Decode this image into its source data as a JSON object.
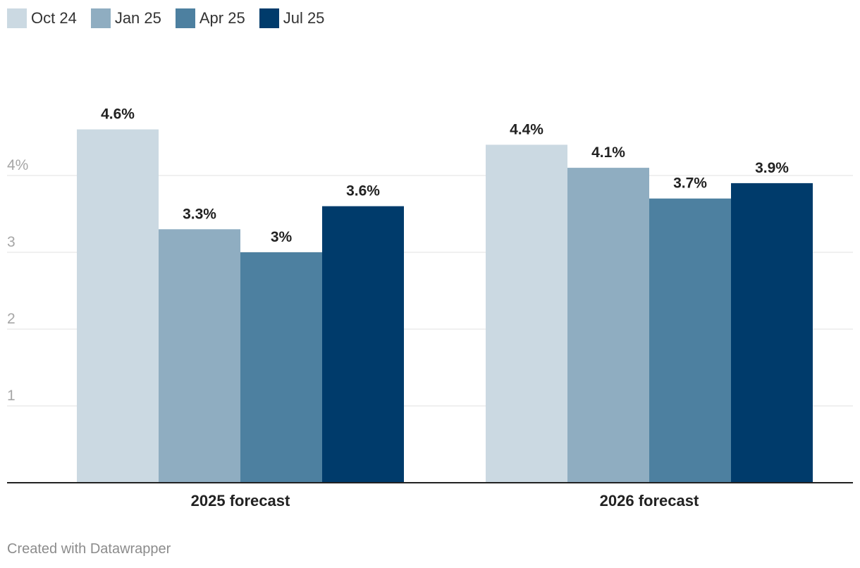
{
  "chart_data": {
    "type": "bar",
    "title": "",
    "xlabel": "",
    "ylabel": "",
    "categories": [
      "2025 forecast",
      "2026 forecast"
    ],
    "series": [
      {
        "name": "Oct 24",
        "color": "#cbd9e2",
        "values": [
          4.6,
          4.4
        ],
        "labels": [
          "4.6%",
          "4.4%"
        ]
      },
      {
        "name": "Jan 25",
        "color": "#8fadc1",
        "values": [
          3.3,
          4.1
        ],
        "labels": [
          "3.3%",
          "4.1%"
        ]
      },
      {
        "name": "Apr 25",
        "color": "#4d80a0",
        "values": [
          3.0,
          3.7
        ],
        "labels": [
          "3%",
          "3.7%"
        ]
      },
      {
        "name": "Jul 25",
        "color": "#003b6b",
        "values": [
          3.6,
          3.9
        ],
        "labels": [
          "3.6%",
          "3.9%"
        ]
      }
    ],
    "ylim": [
      0,
      4.6
    ],
    "yticks": [
      {
        "value": 1,
        "label": "1"
      },
      {
        "value": 2,
        "label": "2"
      },
      {
        "value": 3,
        "label": "3"
      },
      {
        "value": 4,
        "label": "4%"
      }
    ],
    "grid": true,
    "legend_position": "top-left"
  },
  "footer": {
    "credit": "Created with Datawrapper"
  }
}
